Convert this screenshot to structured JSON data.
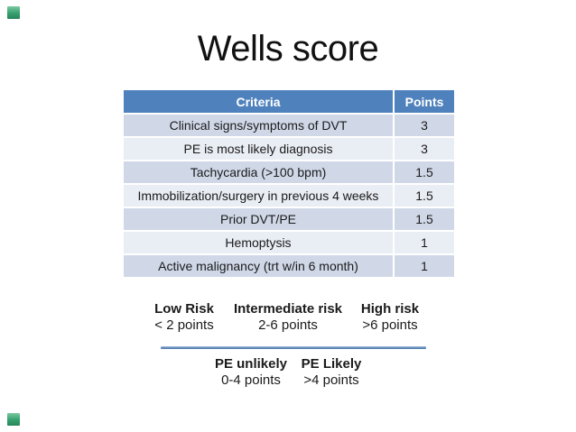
{
  "slide": {
    "title": "Wells score"
  },
  "table": {
    "headers": [
      "Criteria",
      "Points"
    ],
    "rows": [
      {
        "criteria": "Clinical signs/symptoms of DVT",
        "points": "3"
      },
      {
        "criteria": "PE is most likely diagnosis",
        "points": "3"
      },
      {
        "criteria": "Tachycardia (>100 bpm)",
        "points": "1.5"
      },
      {
        "criteria": "Immobilization/surgery in previous 4 weeks",
        "points": "1.5"
      },
      {
        "criteria": "Prior DVT/PE",
        "points": "1.5"
      },
      {
        "criteria": "Hemoptysis",
        "points": "1"
      },
      {
        "criteria": "Active malignancy (trt w/in 6 month)",
        "points": "1"
      }
    ]
  },
  "risk_levels": [
    {
      "label": "Low Risk",
      "points": "< 2 points"
    },
    {
      "label": "Intermediate risk",
      "points": "2-6 points"
    },
    {
      "label": "High risk",
      "points": ">6 points"
    }
  ],
  "pe_categories": [
    {
      "label": "PE unlikely",
      "points": "0-4 points"
    },
    {
      "label": "PE Likely",
      "points": ">4 points"
    }
  ],
  "colors": {
    "header_bg": "#4f81bd",
    "band_dark": "#d0d8e8",
    "band_light": "#e9edf4",
    "divider_blue": "#5b87b8",
    "corner_green": "#35a06d",
    "text": "#1a1a1a",
    "header_text": "#ffffff"
  }
}
